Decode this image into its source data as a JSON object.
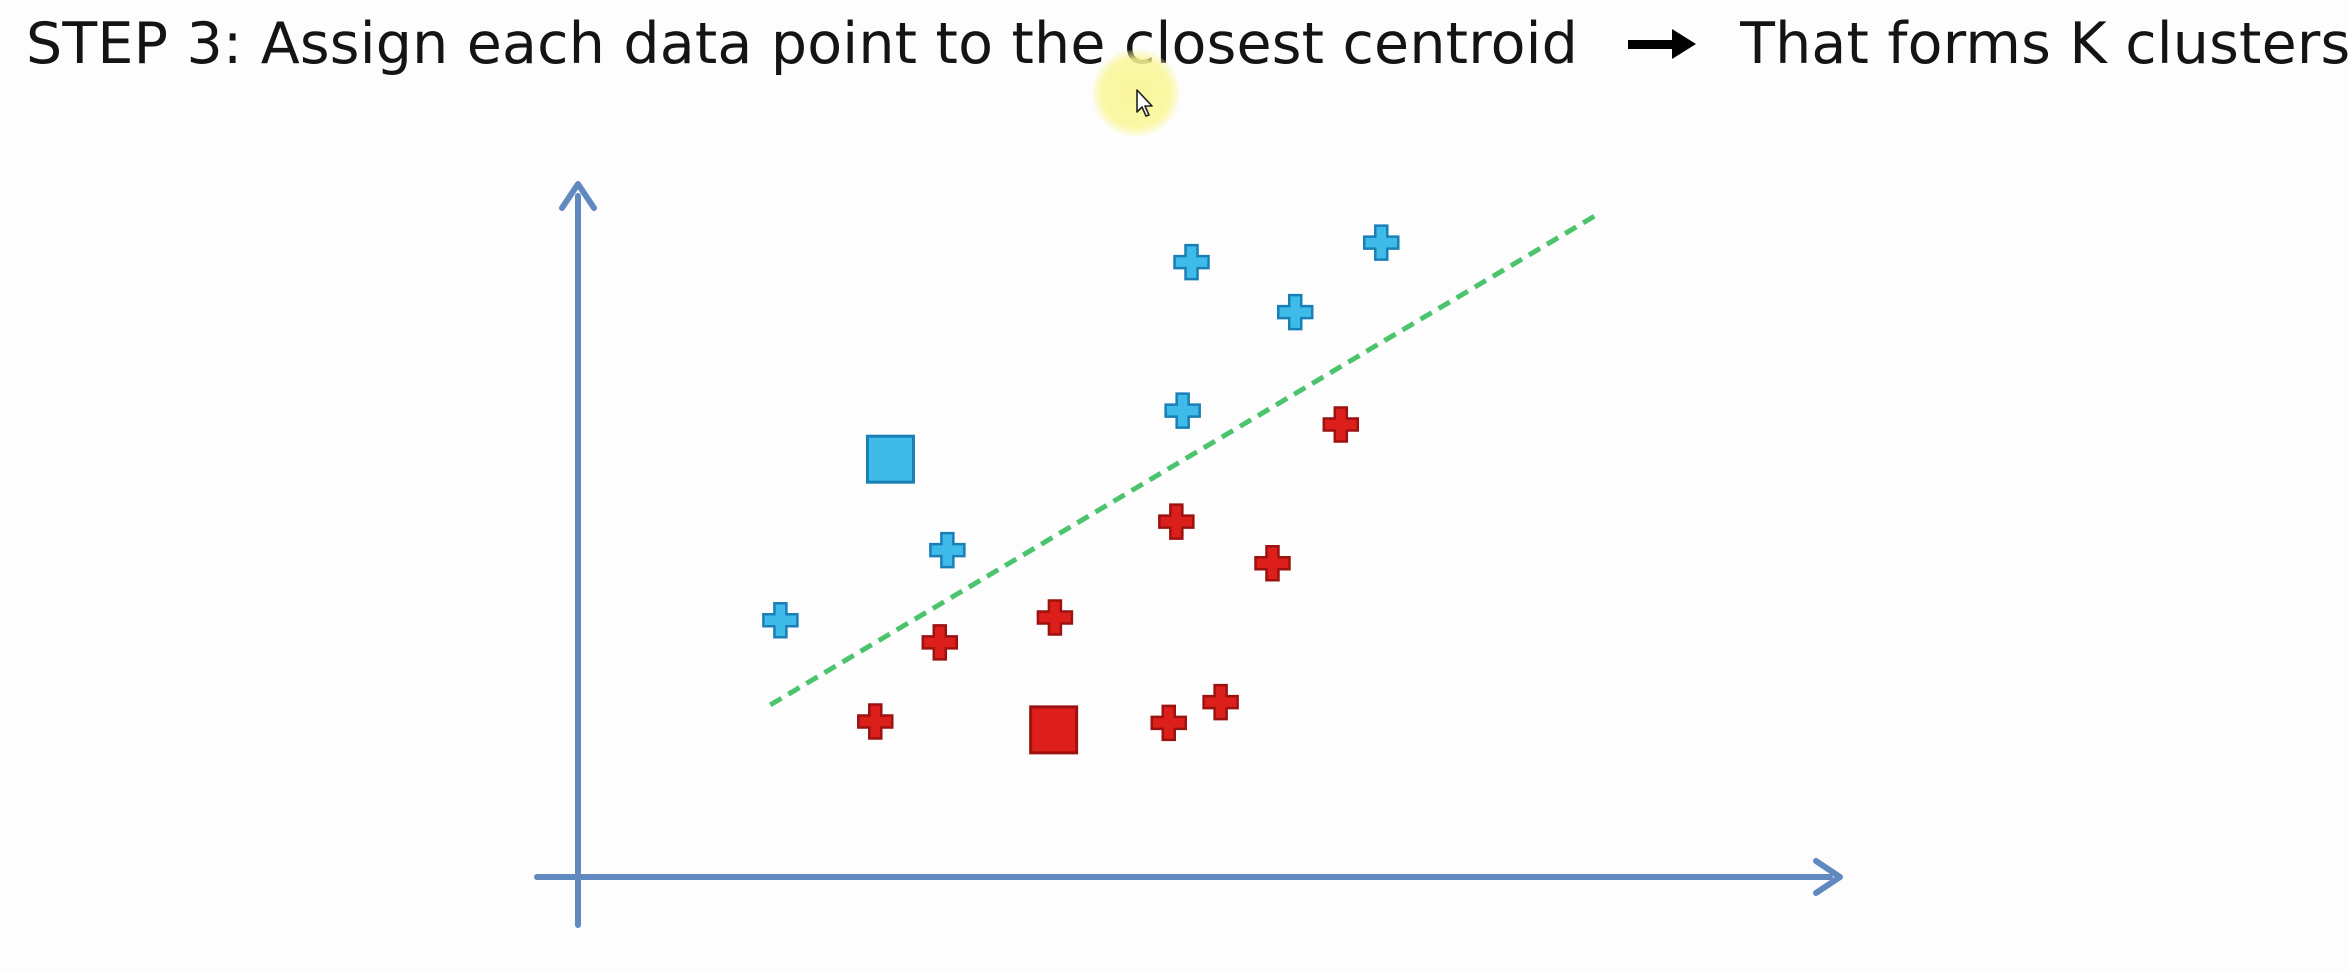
{
  "heading": {
    "step_label": "STEP 3",
    "step_text": ": Assign each data point to the closest centroid",
    "result_text": "That forms K clusters",
    "arrow_icon": "right-arrow-icon"
  },
  "colors": {
    "axis": "#6089bf",
    "cluster_blue": "#3fbbe9",
    "cluster_blue_edge": "#1a7fb6",
    "cluster_red": "#dd1f1b",
    "cluster_red_edge": "#9c1210",
    "boundary": "#4cc46e",
    "cursor_highlight": "#faf696"
  },
  "chart_data": {
    "type": "scatter",
    "title": "",
    "xlabel": "",
    "ylabel": "",
    "xlim": [
      0,
      100
    ],
    "ylim": [
      0,
      100
    ],
    "grid": false,
    "legend": "none",
    "axis_ticks": "none",
    "series": [
      {
        "cluster": "blue",
        "marker": "plus",
        "points": [
          {
            "x": 16.0,
            "y": 37.0
          },
          {
            "x": 29.2,
            "y": 47.1
          },
          {
            "x": 47.8,
            "y": 67.2
          },
          {
            "x": 48.5,
            "y": 88.6
          },
          {
            "x": 56.7,
            "y": 81.4
          },
          {
            "x": 63.5,
            "y": 91.4
          }
        ]
      },
      {
        "cluster": "red",
        "marker": "plus",
        "points": [
          {
            "x": 23.5,
            "y": 22.4
          },
          {
            "x": 28.6,
            "y": 33.8
          },
          {
            "x": 37.7,
            "y": 37.4
          },
          {
            "x": 46.7,
            "y": 22.2
          },
          {
            "x": 47.3,
            "y": 51.2
          },
          {
            "x": 50.8,
            "y": 25.2
          },
          {
            "x": 54.9,
            "y": 45.2
          },
          {
            "x": 60.3,
            "y": 65.2
          }
        ]
      }
    ],
    "centroids": [
      {
        "cluster": "blue",
        "marker": "square",
        "x": 24.7,
        "y": 60.2
      },
      {
        "cluster": "red",
        "marker": "square",
        "x": 37.6,
        "y": 21.2
      }
    ],
    "boundary_line": {
      "style": "dashed",
      "x": [
        15.2,
        80.7
      ],
      "y": [
        24.8,
        95.6
      ]
    }
  }
}
